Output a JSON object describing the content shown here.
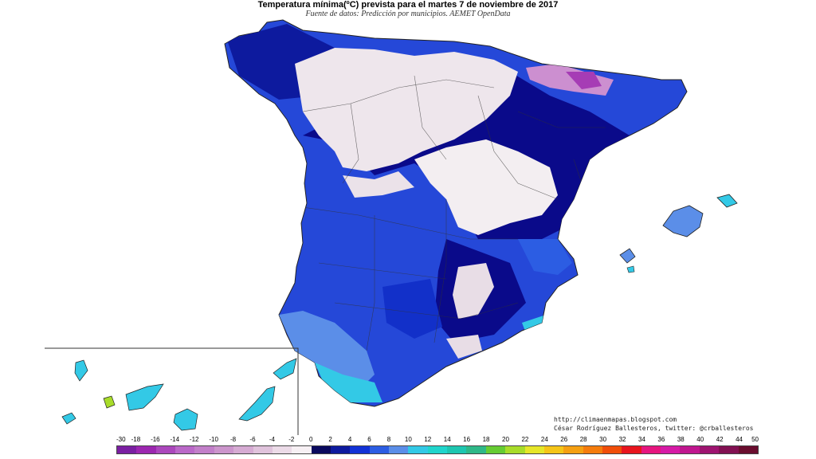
{
  "title": "Temperatura mínima(ºC) prevista para el martes 7 de noviembre de 2017",
  "subtitle": "Fuente de datos: Predicción por municipios. AEMET OpenData",
  "credits": {
    "url": "http://climaenmapas.blogspot.com",
    "author": "César Rodríguez Ballesteros, twitter: @crballesteros"
  },
  "legend": {
    "ticks": [
      "-30",
      "-18",
      "-16",
      "-14",
      "-12",
      "-10",
      "-8",
      "-6",
      "-4",
      "-2",
      "0",
      "2",
      "4",
      "6",
      "8",
      "10",
      "12",
      "14",
      "16",
      "18",
      "20",
      "22",
      "24",
      "26",
      "28",
      "30",
      "32",
      "34",
      "36",
      "38",
      "40",
      "42",
      "44",
      "50"
    ],
    "colors": [
      "#7b1fa2",
      "#9c27b0",
      "#ab47bc",
      "#ba68c8",
      "#c27fc9",
      "#cc95cc",
      "#d6abd3",
      "#e0c3dc",
      "#ecdbe8",
      "#f7f0f4",
      "#0a0a5e",
      "#0d1a9e",
      "#1232d6",
      "#2c5de3",
      "#5b8ee8",
      "#33c9e6",
      "#20d5cc",
      "#1ec6b0",
      "#2fb888",
      "#66cc33",
      "#a8dc2a",
      "#e6e629",
      "#f5c518",
      "#f5a012",
      "#f57c0d",
      "#f04e0a",
      "#e8151e",
      "#e6157f",
      "#d61aa6",
      "#c0168f",
      "#9e1470",
      "#821052",
      "#6a0d2e"
    ]
  },
  "map_legend_classes": {
    "lt_0": "#e8dde6",
    "0_2": "#0a0a8a",
    "2_4": "#1230c9",
    "4_6": "#2c5de3",
    "8_10": "#5b8ee8",
    "10_14": "#33c9e6"
  }
}
